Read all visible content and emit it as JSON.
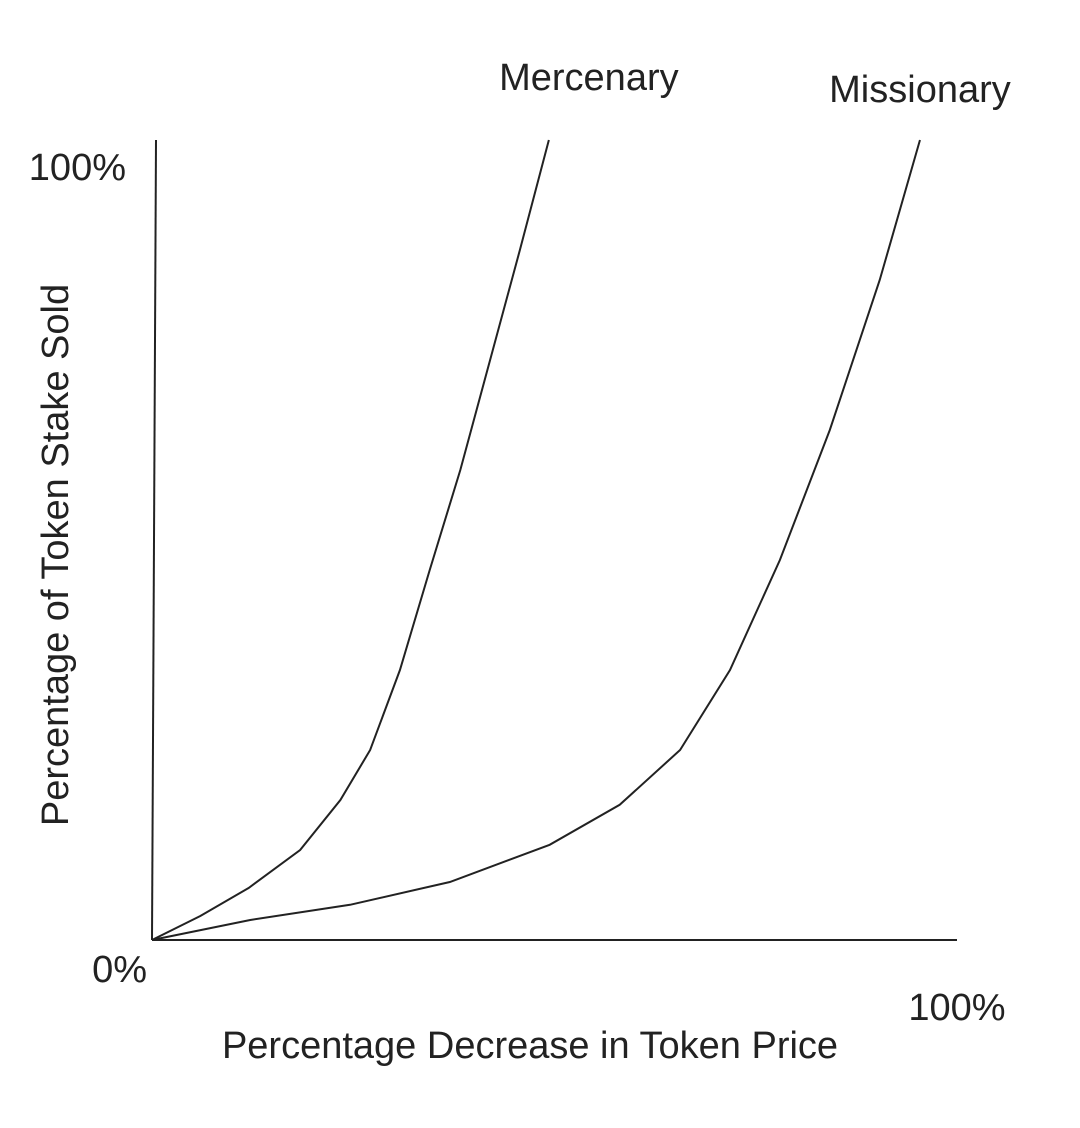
{
  "chart_data": {
    "type": "line",
    "xlabel": "Percentage Decrease in Token Price",
    "ylabel": "Percentage of Token Stake Sold",
    "xlim": [
      0,
      100
    ],
    "ylim": [
      0,
      100
    ],
    "xticks": [
      {
        "value": 0,
        "label": "0%"
      },
      {
        "value": 100,
        "label": "100%"
      }
    ],
    "yticks": [
      {
        "value": 100,
        "label": "100%"
      }
    ],
    "grid": false,
    "series": [
      {
        "name": "Mercenary",
        "color": "#222222",
        "x": [
          0,
          6,
          12,
          18.4,
          23.4,
          27.1,
          30.8,
          34.5,
          38.3,
          42,
          45.7,
          49.3
        ],
        "values": [
          0,
          3,
          6.5,
          11.25,
          17.5,
          23.75,
          33.75,
          46.25,
          58.75,
          72.5,
          86.25,
          100
        ]
      },
      {
        "name": "Missionary",
        "color": "#222222",
        "x": [
          0,
          12.2,
          24.6,
          37,
          49.4,
          58.1,
          65.6,
          71.8,
          78,
          84.2,
          90.4,
          95.4
        ],
        "values": [
          0,
          2.5,
          4.4,
          7.25,
          11.9,
          16.9,
          23.75,
          33.75,
          47.5,
          63.75,
          82.5,
          100
        ]
      }
    ]
  }
}
